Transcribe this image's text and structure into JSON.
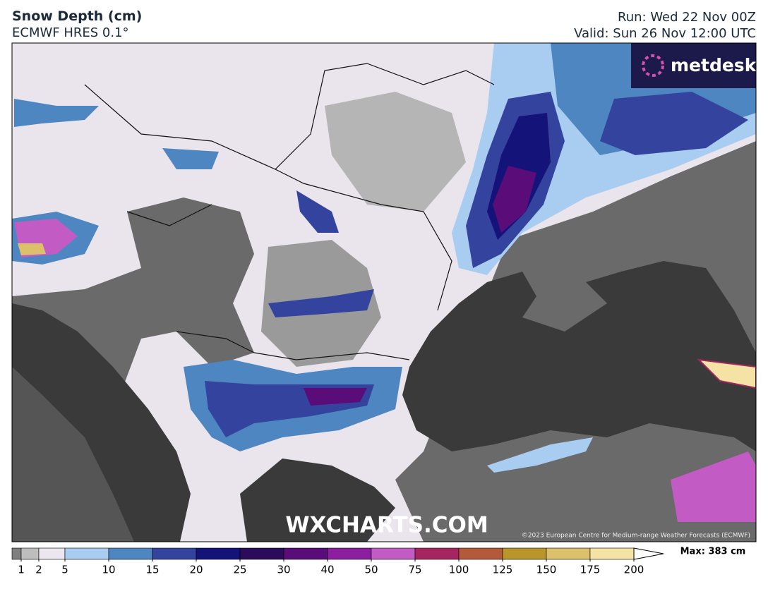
{
  "header": {
    "title": "Snow Depth (cm)",
    "subtitle": "ECMWF HRES 0.1°",
    "run": "Run: Wed 22 Nov 00Z",
    "valid": "Valid: Sun 26 Nov 12:00 UTC"
  },
  "logo": {
    "text": "metdesk"
  },
  "watermark": "WXCHARTS.COM",
  "copyright": "©2023 European Centre for Medium-range Weather Forecasts (ECMWF)",
  "colorbar": {
    "ticks": [
      1,
      2,
      5,
      10,
      15,
      20,
      25,
      30,
      40,
      50,
      75,
      100,
      125,
      150,
      175,
      200
    ],
    "colors": [
      "#7f7f7f",
      "#bdbdbd",
      "#ece6ee",
      "#a9cdf1",
      "#4e86c2",
      "#34449e",
      "#14137a",
      "#2a0c5a",
      "#5a0d78",
      "#8c1fa0",
      "#c25bc4",
      "#a6245f",
      "#b45a3a",
      "#b8962a",
      "#dcc06a",
      "#f5e3a5"
    ],
    "max_label": "Max: 383 cm"
  }
}
